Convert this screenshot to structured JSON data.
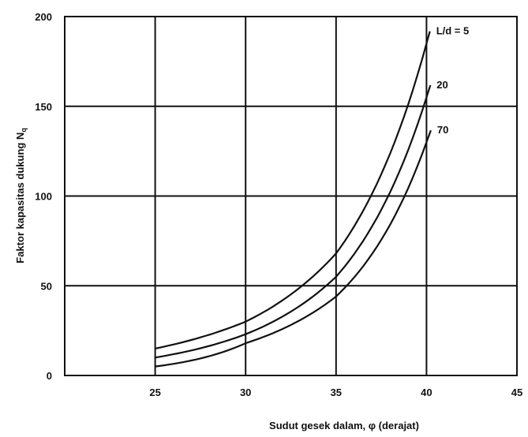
{
  "chart_data": {
    "type": "line",
    "title": "",
    "xlabel": "Sudut gesek dalam, φ (derajat)",
    "ylabel": "Faktor kapasitas dukung N",
    "ylabel_subscript": "q",
    "xlim": [
      20,
      45
    ],
    "ylim": [
      0,
      200
    ],
    "x_ticks": [
      "25",
      "30",
      "35",
      "40",
      "45"
    ],
    "y_ticks": [
      "0",
      "50",
      "100",
      "150",
      "200"
    ],
    "grid": true,
    "series": [
      {
        "name": "L/d = 5",
        "x": [
          25,
          30,
          35,
          40
        ],
        "y": [
          15,
          30,
          68,
          185
        ]
      },
      {
        "name": "20",
        "x": [
          25,
          30,
          35,
          40
        ],
        "y": [
          10,
          23,
          55,
          155
        ]
      },
      {
        "name": "70",
        "x": [
          25,
          30,
          35,
          40
        ],
        "y": [
          5,
          18,
          44,
          130
        ]
      }
    ]
  }
}
